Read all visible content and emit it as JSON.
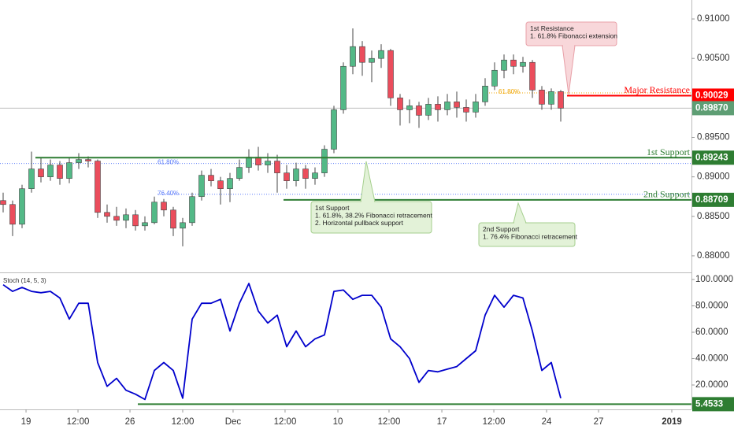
{
  "chart_data": {
    "type": "candlestick",
    "x": [
      0,
      1,
      2,
      3,
      4,
      5,
      6,
      7,
      8,
      9,
      10,
      11,
      12,
      13,
      14,
      15,
      16,
      17,
      18,
      19,
      20,
      21,
      22,
      23,
      24,
      25,
      26,
      27,
      28,
      29,
      30,
      31,
      32,
      33,
      34,
      35,
      36,
      37,
      38,
      39,
      40,
      41,
      42,
      43,
      44,
      45,
      46,
      47,
      48,
      49,
      50,
      51,
      52,
      53,
      54,
      55,
      56,
      57,
      58,
      59
    ],
    "open": [
      0.887,
      0.8865,
      0.884,
      0.8885,
      0.891,
      0.89,
      0.8915,
      0.8898,
      0.8918,
      0.8922,
      0.892,
      0.8855,
      0.885,
      0.8845,
      0.8852,
      0.8838,
      0.8842,
      0.8868,
      0.8858,
      0.8835,
      0.8842,
      0.8875,
      0.8902,
      0.8895,
      0.8885,
      0.8898,
      0.8912,
      0.8925,
      0.8915,
      0.892,
      0.8905,
      0.8895,
      0.891,
      0.8898,
      0.8905,
      0.8935,
      0.8985,
      0.904,
      0.9065,
      0.9045,
      0.905,
      0.906,
      0.9,
      0.8985,
      0.899,
      0.8978,
      0.8992,
      0.8985,
      0.8995,
      0.8988,
      0.8982,
      0.8995,
      0.9015,
      0.9035,
      0.9048,
      0.904,
      0.9045,
      0.901,
      0.8992,
      0.9008
    ],
    "high": [
      0.888,
      0.887,
      0.889,
      0.8932,
      0.8925,
      0.8922,
      0.892,
      0.8925,
      0.893,
      0.8926,
      0.8922,
      0.8865,
      0.8862,
      0.886,
      0.8858,
      0.885,
      0.8875,
      0.8872,
      0.8862,
      0.8848,
      0.888,
      0.8908,
      0.891,
      0.89,
      0.8905,
      0.8922,
      0.8935,
      0.8938,
      0.893,
      0.8928,
      0.8915,
      0.8918,
      0.8915,
      0.8912,
      0.894,
      0.899,
      0.9045,
      0.9088,
      0.9072,
      0.906,
      0.9068,
      0.9062,
      0.9005,
      0.8998,
      0.8995,
      0.9,
      0.9002,
      0.9005,
      0.9008,
      0.8998,
      0.9005,
      0.9025,
      0.9045,
      0.9055,
      0.9055,
      0.9052,
      0.9048,
      0.9015,
      0.9012,
      0.901
    ],
    "low": [
      0.8855,
      0.8825,
      0.8835,
      0.888,
      0.8893,
      0.8895,
      0.889,
      0.8892,
      0.891,
      0.8912,
      0.8848,
      0.8842,
      0.8838,
      0.8835,
      0.8832,
      0.8832,
      0.884,
      0.885,
      0.8825,
      0.8812,
      0.8838,
      0.887,
      0.8888,
      0.8865,
      0.8868,
      0.8895,
      0.8905,
      0.8908,
      0.8905,
      0.888,
      0.8885,
      0.8888,
      0.8885,
      0.889,
      0.89,
      0.893,
      0.898,
      0.903,
      0.9028,
      0.902,
      0.9038,
      0.899,
      0.8965,
      0.8968,
      0.8962,
      0.8972,
      0.897,
      0.8978,
      0.8975,
      0.897,
      0.8975,
      0.899,
      0.901,
      0.9025,
      0.903,
      0.9032,
      0.9,
      0.8985,
      0.8985,
      0.897
    ],
    "close": [
      0.8865,
      0.884,
      0.8885,
      0.891,
      0.89,
      0.8915,
      0.8898,
      0.8918,
      0.8922,
      0.892,
      0.8855,
      0.885,
      0.8845,
      0.8852,
      0.8838,
      0.8842,
      0.8868,
      0.8858,
      0.8835,
      0.8842,
      0.8875,
      0.8902,
      0.8895,
      0.8885,
      0.8898,
      0.8912,
      0.8925,
      0.8915,
      0.892,
      0.8905,
      0.8895,
      0.891,
      0.8898,
      0.8905,
      0.8935,
      0.8985,
      0.904,
      0.9065,
      0.9045,
      0.905,
      0.906,
      0.9,
      0.8985,
      0.899,
      0.8978,
      0.8992,
      0.8985,
      0.8995,
      0.8988,
      0.8982,
      0.8995,
      0.9015,
      0.9035,
      0.9048,
      0.904,
      0.9045,
      0.901,
      0.8992,
      0.9008,
      0.8987
    ],
    "up_color": "#53b987",
    "down_color": "#eb4d5c",
    "xlim": [
      -0.333,
      72.833
    ],
    "xticks": [
      {
        "value": 2.42,
        "label": "19"
      },
      {
        "value": 7.92,
        "label": "12:00"
      },
      {
        "value": 13.42,
        "label": "26"
      },
      {
        "value": 19,
        "label": "12:00"
      },
      {
        "value": 24.33,
        "label": "Dec"
      },
      {
        "value": 29.83,
        "label": "12:00"
      },
      {
        "value": 35.42,
        "label": "10"
      },
      {
        "value": 40.83,
        "label": "12:00"
      },
      {
        "value": 46.42,
        "label": "17"
      },
      {
        "value": 51.92,
        "label": "12:00"
      },
      {
        "value": 57.5,
        "label": "24"
      },
      {
        "value": 63,
        "label": "27"
      },
      {
        "value": 70.75,
        "label": "2019"
      }
    ],
    "ylim": [
      0.878,
      0.9124
    ],
    "yticks": [
      {
        "value": 0.91,
        "label": "0.91000"
      },
      {
        "value": 0.905,
        "label": "0.90500"
      },
      {
        "value": 0.895,
        "label": "0.89500"
      },
      {
        "value": 0.89,
        "label": "0.89000"
      },
      {
        "value": 0.885,
        "label": "0.88500"
      },
      {
        "value": 0.88,
        "label": "0.88000"
      }
    ],
    "current_price": {
      "value": 0.8987,
      "label": "0.89870",
      "color": "#888888"
    },
    "levels": [
      {
        "name": "Major Resistance",
        "value": 0.90029,
        "label": "0.90029",
        "color": "#ff0000"
      },
      {
        "name": "1st Support",
        "value": 0.89243,
        "label": "0.89243",
        "color": "#2e7d32"
      },
      {
        "name": "2nd Support",
        "value": 0.88709,
        "label": "0.88709",
        "color": "#2e7d32"
      }
    ],
    "fib_levels": [
      {
        "label": "61.80%",
        "value": 0.8917,
        "color": "#5c7cfa"
      },
      {
        "label": "76.40%",
        "value": 0.8878,
        "color": "#5c7cfa"
      },
      {
        "label": "61.80%",
        "value": 0.90064,
        "color": "#f0a500"
      }
    ],
    "annotations": [
      {
        "lines": [
          "1st Resistance",
          "1. 61.8% Fibonacci extension"
        ],
        "color": "#f8d7da",
        "border": "#e8a0a8"
      },
      {
        "lines": [
          "1st Support",
          "1. 61.8%, 38.2% Fibonacci retracement",
          "2. Horizontal pullback support"
        ],
        "color": "#e3f2d8",
        "border": "#a5cf8e"
      },
      {
        "lines": [
          "2nd Support",
          "1. 76.4% Fibonacci retracement"
        ],
        "color": "#e3f2d8",
        "border": "#a5cf8e"
      }
    ],
    "indicator": {
      "name": "Stoch (14, 5, 3)",
      "color": "#0000cc",
      "values": [
        96,
        91,
        94,
        91,
        90,
        91,
        86,
        70,
        82,
        82,
        37,
        19,
        25,
        16,
        13,
        9,
        31,
        37,
        31,
        10,
        70,
        82,
        82,
        85,
        61,
        82,
        97,
        76,
        67,
        73,
        49,
        61,
        49,
        55,
        58,
        91,
        92,
        85,
        88,
        88,
        79,
        55,
        49,
        40,
        22,
        31,
        30,
        32,
        34,
        40,
        46,
        73,
        88,
        79,
        88,
        86,
        61,
        31,
        37,
        10
      ],
      "y2lim": [
        1.5,
        104.2
      ],
      "y2ticks": [
        {
          "value": 100,
          "label": "100.0000"
        },
        {
          "value": 80,
          "label": "80.0000"
        },
        {
          "value": 60,
          "label": "60.0000"
        },
        {
          "value": 40,
          "label": "40.0000"
        },
        {
          "value": 20,
          "label": "20.0000"
        }
      ],
      "level": 5.4533,
      "level_color": "#2e7d32"
    }
  }
}
